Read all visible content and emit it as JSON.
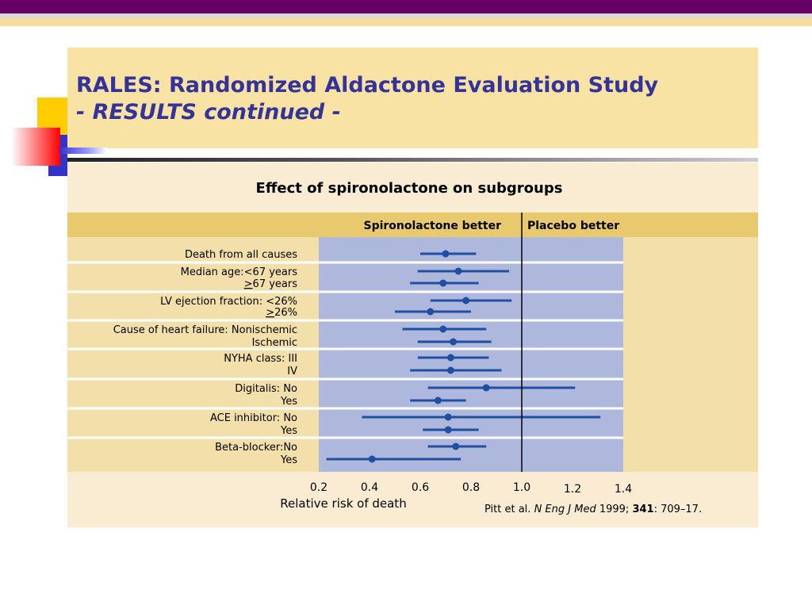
{
  "slide": {
    "title_line1": "RALES: Randomized Aldactone Evaluation Study",
    "title_line2": "- RESULTS continued -",
    "colors": {
      "accent": "#660066",
      "title": "#333399",
      "band": "#e8c96d",
      "plot_bg": "#aeb8dd",
      "marker": "#1f4fa0"
    }
  },
  "chart_data": {
    "type": "forest",
    "title": "Effect of spironolactone on subgroups",
    "left_header": "Spironolactone better",
    "right_header": "Placebo better",
    "xlabel": "Relative risk of death",
    "xlim": [
      0.2,
      1.4
    ],
    "ticks": [
      "0.2",
      "0.4",
      "0.6",
      "0.8",
      "1.0",
      "1.2",
      "1.4"
    ],
    "reference_line": 1.0,
    "groups": [
      {
        "label": "Death from all causes",
        "rows": [
          {
            "label": "",
            "point": 0.7,
            "low": 0.6,
            "high": 0.82
          }
        ]
      },
      {
        "label": "Median age:",
        "rows": [
          {
            "label": "<67 years",
            "point": 0.75,
            "low": 0.59,
            "high": 0.95
          },
          {
            "label": "67 years",
            "prefix": ">",
            "point": 0.69,
            "low": 0.56,
            "high": 0.83
          }
        ]
      },
      {
        "label": "LV ejection fraction: ",
        "rows": [
          {
            "label": "<26%",
            "point": 0.78,
            "low": 0.64,
            "high": 0.96
          },
          {
            "label": "26%",
            "prefix": ">",
            "point": 0.64,
            "low": 0.5,
            "high": 0.8
          }
        ]
      },
      {
        "label": "Cause of heart failure: ",
        "rows": [
          {
            "label": "Nonischemic",
            "point": 0.69,
            "low": 0.53,
            "high": 0.86
          },
          {
            "label": "Ischemic",
            "point": 0.73,
            "low": 0.59,
            "high": 0.88
          }
        ]
      },
      {
        "label": "NYHA class: ",
        "rows": [
          {
            "label": "III",
            "point": 0.72,
            "low": 0.59,
            "high": 0.87
          },
          {
            "label": "IV",
            "point": 0.72,
            "low": 0.56,
            "high": 0.92
          }
        ]
      },
      {
        "label": "Digitalis: ",
        "rows": [
          {
            "label": "No",
            "point": 0.86,
            "low": 0.63,
            "high": 1.21
          },
          {
            "label": "Yes",
            "point": 0.67,
            "low": 0.56,
            "high": 0.78
          }
        ]
      },
      {
        "label": "ACE inhibitor: ",
        "rows": [
          {
            "label": "No",
            "point": 0.71,
            "low": 0.37,
            "high": 1.31
          },
          {
            "label": "Yes",
            "point": 0.71,
            "low": 0.61,
            "high": 0.83
          }
        ]
      },
      {
        "label": "Beta-blocker:",
        "rows": [
          {
            "label": "No",
            "point": 0.74,
            "low": 0.63,
            "high": 0.86
          },
          {
            "label": "Yes",
            "point": 0.41,
            "low": 0.23,
            "high": 0.76
          }
        ]
      }
    ]
  },
  "citation": {
    "authors": "Pitt et al. ",
    "journal": "N Eng J Med",
    "year": " 1999; ",
    "volume": "341",
    "pages": ": 709–17."
  }
}
